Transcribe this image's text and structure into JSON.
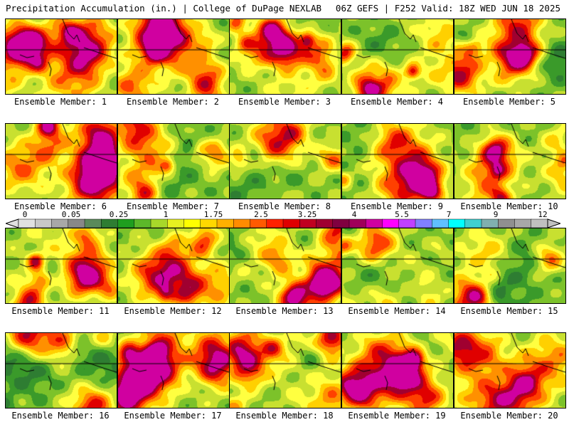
{
  "header": {
    "title_left": "Precipitation Accumulation (in.) | College of DuPage NEXLAB",
    "title_right": "06Z GEFS | F252 Valid: 18Z WED JUN 18 2025"
  },
  "panels": [
    {
      "label": "Ensemble Member: 1"
    },
    {
      "label": "Ensemble Member: 2"
    },
    {
      "label": "Ensemble Member: 3"
    },
    {
      "label": "Ensemble Member: 4"
    },
    {
      "label": "Ensemble Member: 5"
    },
    {
      "label": "Ensemble Member: 6"
    },
    {
      "label": "Ensemble Member: 7"
    },
    {
      "label": "Ensemble Member: 8"
    },
    {
      "label": "Ensemble Member: 9"
    },
    {
      "label": "Ensemble Member: 10"
    },
    {
      "label": "Ensemble Member: 11"
    },
    {
      "label": "Ensemble Member: 12"
    },
    {
      "label": "Ensemble Member: 13"
    },
    {
      "label": "Ensemble Member: 14"
    },
    {
      "label": "Ensemble Member: 15"
    },
    {
      "label": "Ensemble Member: 16"
    },
    {
      "label": "Ensemble Member: 17"
    },
    {
      "label": "Ensemble Member: 18"
    },
    {
      "label": "Ensemble Member: 19"
    },
    {
      "label": "Ensemble Member: 20"
    }
  ],
  "colorbar": {
    "tick_labels": [
      "0",
      "0.05",
      "0.25",
      "1",
      "1.75",
      "2.5",
      "3.25",
      "4",
      "5.5",
      "7",
      "9",
      "12"
    ],
    "colors": [
      "#e0e0e0",
      "#c8c8c8",
      "#a8a8a8",
      "#888888",
      "#5a8a5a",
      "#2e7d32",
      "#1f9e1f",
      "#5cb82a",
      "#a8d82a",
      "#e8f020",
      "#ffff00",
      "#ffd800",
      "#ffb000",
      "#ff8c00",
      "#ff5a00",
      "#ff2000",
      "#e00000",
      "#c00020",
      "#a00030",
      "#800040",
      "#a0005a",
      "#d000a0",
      "#ff00ff",
      "#c040ff",
      "#8080ff",
      "#60c0ff",
      "#00ffff",
      "#40d0d0",
      "#80b0b0",
      "#909090",
      "#a8a8a8",
      "#c0c0c0"
    ]
  }
}
